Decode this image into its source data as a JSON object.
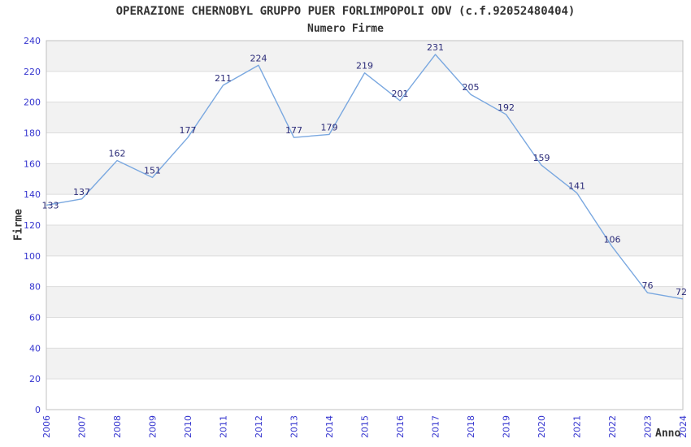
{
  "title": "OPERAZIONE CHERNOBYL GRUPPO PUER FORLIMPOPOLI ODV (c.f.92052480404)",
  "subtitle": "Numero Firme",
  "chart_data": {
    "type": "line",
    "title": "OPERAZIONE CHERNOBYL GRUPPO PUER FORLIMPOPOLI ODV (c.f.92052480404)",
    "subtitle": "Numero Firme",
    "xlabel": "Anno",
    "ylabel": "Firme",
    "x": [
      2006,
      2007,
      2008,
      2009,
      2010,
      2011,
      2012,
      2013,
      2014,
      2015,
      2016,
      2017,
      2018,
      2019,
      2020,
      2021,
      2022,
      2023,
      2024
    ],
    "series": [
      {
        "name": "Numero Firme",
        "values": [
          133,
          137,
          162,
          151,
          177,
          211,
          224,
          177,
          179,
          219,
          201,
          231,
          205,
          192,
          159,
          141,
          106,
          76,
          72
        ]
      }
    ],
    "ylim": [
      0,
      240
    ],
    "ytick_step": 20,
    "grid": true,
    "legend": "none",
    "colors": {
      "line": "#7aa8e0",
      "tick_label": "#3535cf",
      "value_label": "#2b2b78",
      "band_gray": "#f2f2f2",
      "band_white": "#ffffff",
      "gridline": "#dcdcdc",
      "plot_border": "#c0c0c0",
      "title_text": "#333333"
    }
  }
}
